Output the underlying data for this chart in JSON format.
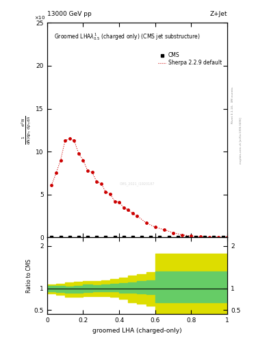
{
  "title_left": "13000 GeV pp",
  "title_right": "Z+Jet",
  "plot_title": "Groomed LHA$\\lambda^{1}_{0.5}$ (charged only) (CMS jet substructure)",
  "xlabel": "groomed LHA (charged-only)",
  "ylabel_main": "$\\frac{1}{\\mathrm{d}N/\\mathrm{d}p_\\mathrm{T}}\\frac{\\mathrm{d}^2N}{\\mathrm{d}p_\\mathrm{T}\\,\\mathrm{d}\\lambda}$",
  "ylabel_ratio": "Ratio to CMS",
  "right_label": "Rivet 3.1.10,  3M events",
  "right_label2": "mcplots.cern.ch [arXiv:1306.3436]",
  "watermark": "CMS_2021_I1920187",
  "cms_x": [
    0.025,
    0.075,
    0.125,
    0.175,
    0.225,
    0.275,
    0.325,
    0.375,
    0.425,
    0.475,
    0.525,
    0.575,
    0.625,
    0.675,
    0.725,
    0.775,
    0.825,
    0.875,
    0.925,
    0.975
  ],
  "cms_y": [
    0.0,
    0.0,
    0.0,
    0.0,
    0.0,
    0.0,
    0.0,
    0.0,
    0.0,
    0.0,
    0.0,
    0.0,
    0.0,
    0.0,
    0.0,
    0.0,
    0.0,
    0.0,
    0.0,
    0.0
  ],
  "sherpa_x": [
    0.025,
    0.05,
    0.075,
    0.1,
    0.125,
    0.15,
    0.175,
    0.2,
    0.225,
    0.25,
    0.275,
    0.3,
    0.325,
    0.35,
    0.375,
    0.4,
    0.425,
    0.45,
    0.475,
    0.5,
    0.55,
    0.6,
    0.65,
    0.7,
    0.75,
    0.8,
    0.85,
    0.9,
    0.95,
    1.0
  ],
  "sherpa_y": [
    6.1,
    7.5,
    9.0,
    11.3,
    11.5,
    11.3,
    9.8,
    9.0,
    7.8,
    7.6,
    6.5,
    6.3,
    5.3,
    5.1,
    4.2,
    4.1,
    3.5,
    3.2,
    2.8,
    2.5,
    1.7,
    1.2,
    0.9,
    0.55,
    0.3,
    0.18,
    0.1,
    0.05,
    0.03,
    0.01
  ],
  "ylim_main": [
    0,
    25
  ],
  "xlim": [
    0,
    1
  ],
  "ylim_ratio": [
    0.4,
    2.2
  ],
  "green_band_edges": [
    0.0,
    0.05,
    0.1,
    0.15,
    0.2,
    0.25,
    0.3,
    0.35,
    0.4,
    0.45,
    0.5,
    0.55,
    0.6,
    0.65,
    1.0
  ],
  "green_band_lo": [
    0.93,
    0.92,
    0.9,
    0.91,
    0.92,
    0.93,
    0.94,
    0.93,
    0.91,
    0.9,
    0.89,
    0.87,
    0.68,
    0.68,
    0.68
  ],
  "green_band_hi": [
    1.07,
    1.06,
    1.05,
    1.07,
    1.09,
    1.08,
    1.1,
    1.11,
    1.13,
    1.15,
    1.17,
    1.19,
    1.4,
    1.4,
    1.4
  ],
  "yellow_band_edges": [
    0.0,
    0.05,
    0.1,
    0.15,
    0.2,
    0.25,
    0.3,
    0.35,
    0.4,
    0.45,
    0.5,
    0.55,
    0.6,
    0.65,
    1.0
  ],
  "yellow_band_lo": [
    0.88,
    0.85,
    0.8,
    0.8,
    0.82,
    0.83,
    0.83,
    0.8,
    0.75,
    0.68,
    0.65,
    0.6,
    0.42,
    0.42,
    0.42
  ],
  "yellow_band_hi": [
    1.1,
    1.12,
    1.14,
    1.16,
    1.18,
    1.18,
    1.2,
    1.22,
    1.26,
    1.3,
    1.34,
    1.38,
    1.82,
    1.82,
    1.82
  ],
  "cms_color": "black",
  "sherpa_color": "#cc0000",
  "green_color": "#66cc66",
  "yellow_color": "#dddd00",
  "background_color": "white"
}
